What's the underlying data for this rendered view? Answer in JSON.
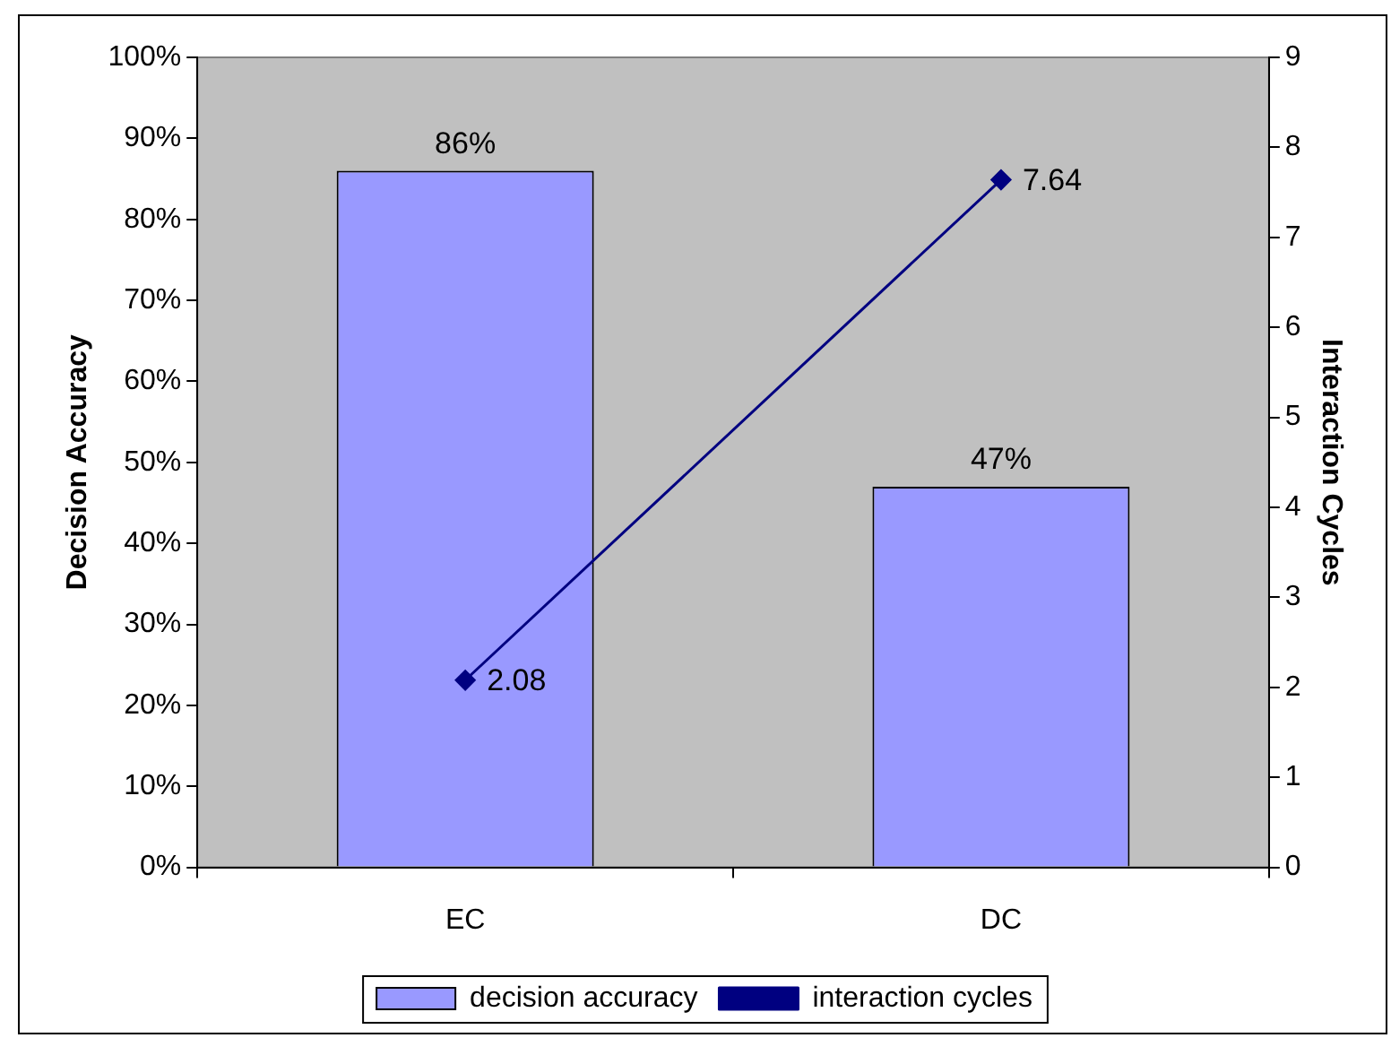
{
  "chart_data": {
    "type": "bar",
    "categories": [
      "EC",
      "DC"
    ],
    "series": [
      {
        "name": "decision accuracy",
        "color": "#9999ff",
        "values": [
          86,
          47
        ],
        "value_labels": [
          "86%",
          "47%"
        ]
      },
      {
        "name": "interaction cycles",
        "type": "line",
        "axis": "y2",
        "color": "#000080",
        "values": [
          2.08,
          7.64
        ],
        "value_labels": [
          "2.08",
          "7.64"
        ],
        "marker": "diamond"
      }
    ],
    "ylabel": "Decision Accuracy",
    "y2label": "Interaction Cycles",
    "ylim": [
      0,
      100
    ],
    "yticks": [
      {
        "value": 0,
        "label": "0%"
      },
      {
        "value": 10,
        "label": "10%"
      },
      {
        "value": 20,
        "label": "20%"
      },
      {
        "value": 30,
        "label": "30%"
      },
      {
        "value": 40,
        "label": "40%"
      },
      {
        "value": 50,
        "label": "50%"
      },
      {
        "value": 60,
        "label": "60%"
      },
      {
        "value": 70,
        "label": "70%"
      },
      {
        "value": 80,
        "label": "80%"
      },
      {
        "value": 90,
        "label": "90%"
      },
      {
        "value": 100,
        "label": "100%"
      }
    ],
    "y2lim": [
      0,
      9
    ],
    "y2ticks": [
      0,
      1,
      2,
      3,
      4,
      5,
      6,
      7,
      8,
      9
    ],
    "legend": "bottom"
  }
}
